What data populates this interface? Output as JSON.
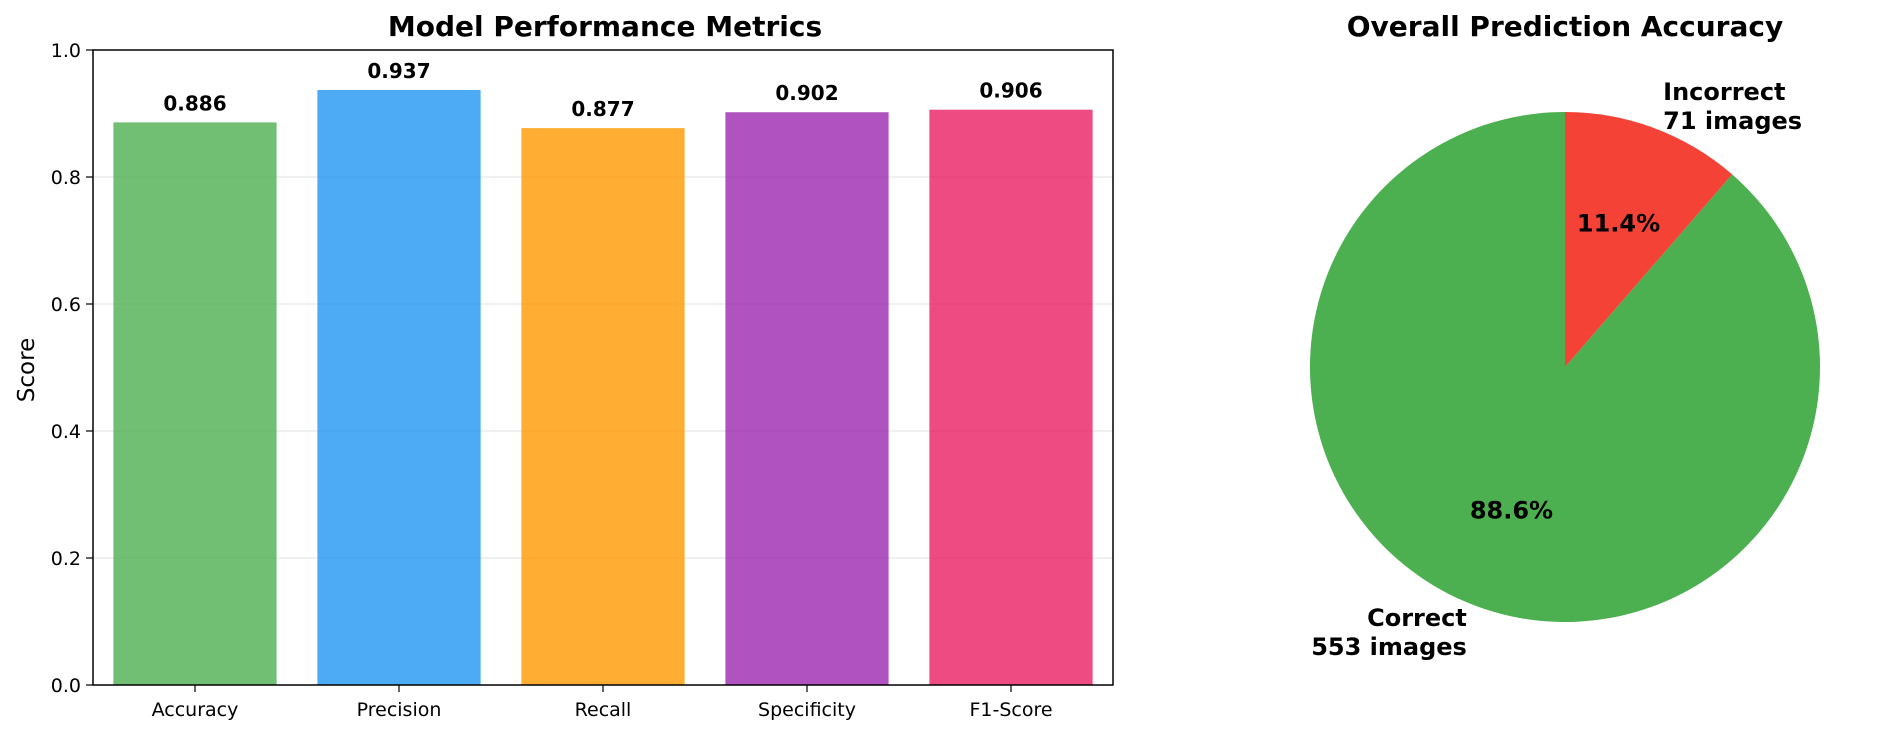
{
  "chart_data": [
    {
      "type": "bar",
      "title": "Model Performance Metrics",
      "xlabel": "",
      "ylabel": "Score",
      "ylim": [
        0,
        1.0
      ],
      "yticks": [
        "0.0",
        "0.2",
        "0.4",
        "0.6",
        "0.8",
        "1.0"
      ],
      "grid": "horizontal",
      "categories": [
        "Accuracy",
        "Precision",
        "Recall",
        "Specificity",
        "F1-Score"
      ],
      "values": [
        0.886,
        0.937,
        0.877,
        0.902,
        0.906
      ],
      "value_labels": [
        "0.886",
        "0.937",
        "0.877",
        "0.902",
        "0.906"
      ],
      "colors": [
        "#4caf50",
        "#2196f3",
        "#ff9800",
        "#9c27b0",
        "#e91e63"
      ]
    },
    {
      "type": "pie",
      "title": "Overall Prediction Accuracy",
      "slices": [
        {
          "label_line1": "Correct",
          "label_line2": "553 images",
          "value": 553,
          "percent_label": "88.6%",
          "color": "#4caf50"
        },
        {
          "label_line1": "Incorrect",
          "label_line2": "71 images",
          "value": 71,
          "percent_label": "11.4%",
          "color": "#f44336"
        }
      ]
    }
  ]
}
